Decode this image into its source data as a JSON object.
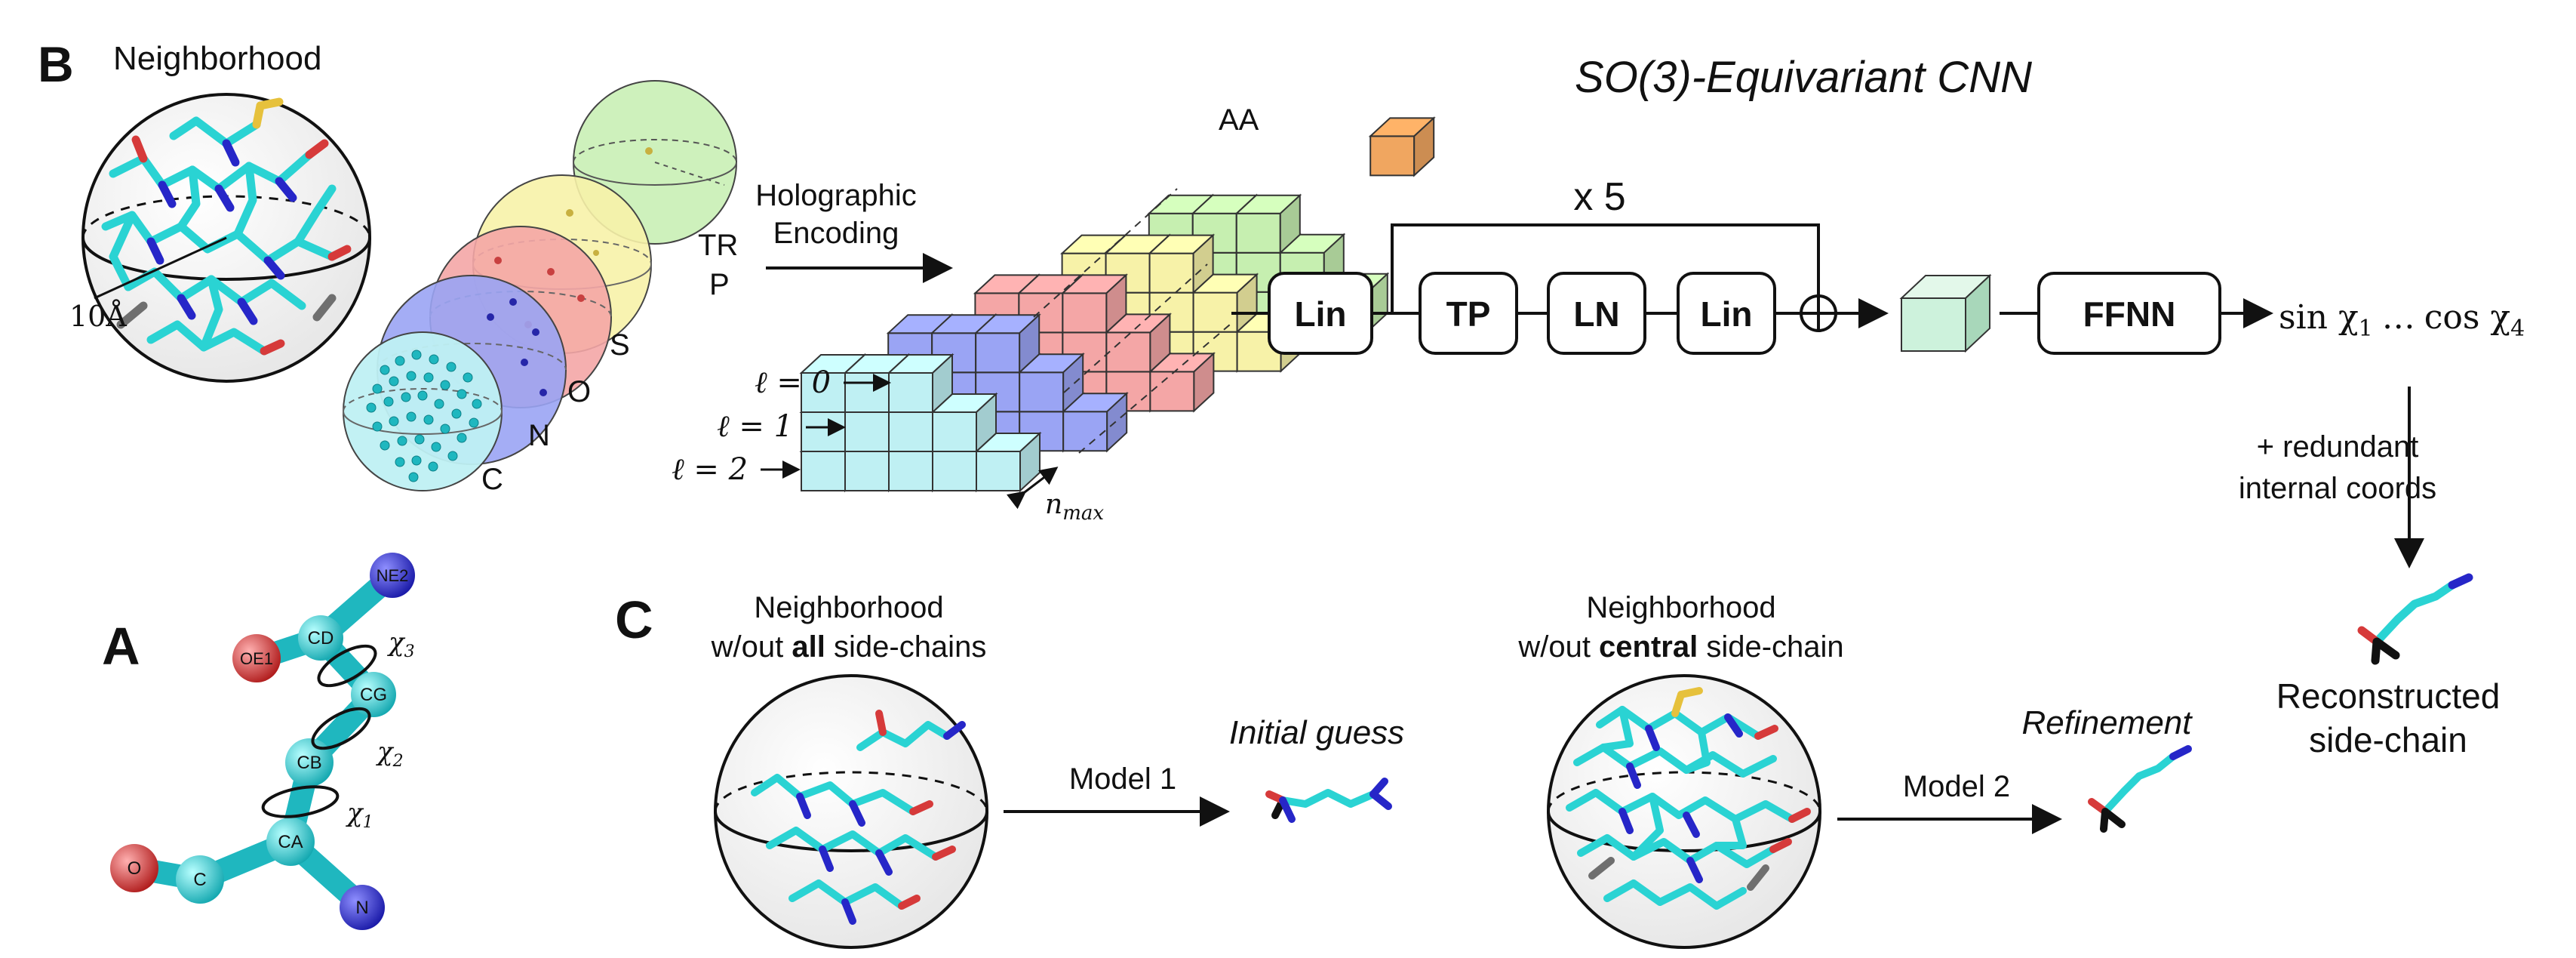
{
  "panels": {
    "a": "A",
    "b": "B",
    "c": "C"
  },
  "panel_b": {
    "neighborhood_label": "Neighborhood",
    "radius_label": "10Å",
    "channels": [
      "C",
      "N",
      "O",
      "S",
      "P",
      "TR"
    ],
    "encoding_label_line1": "Holographic",
    "encoding_label_line2": "Encoding",
    "aa_label": "AA",
    "l_labels": [
      "ℓ = 0",
      "ℓ = 1",
      "ℓ = 2"
    ],
    "nmax_label": "n",
    "nmax_sub": "max",
    "network_title": "SO(3)-Equivariant CNN",
    "repeat_label": "x 5",
    "blocks": [
      "Lin",
      "TP",
      "LN",
      "Lin"
    ],
    "ffnn_label": "FFNN",
    "output_sin": "sin χ",
    "output_sin_sub": "1",
    "output_ellipsis": "…",
    "output_cos": "cos χ",
    "output_cos_sub": "4",
    "redundant_line1": "+  redundant",
    "redundant_line2": "internal coords",
    "reconstructed_line1": "Reconstructed",
    "reconstructed_line2": "side-chain"
  },
  "panel_a": {
    "atoms": [
      "NE2",
      "CD",
      "OE1",
      "CG",
      "CB",
      "CA",
      "C",
      "O",
      "N"
    ],
    "chi_labels": [
      "χ",
      "χ",
      "χ"
    ],
    "chi_subs": [
      "3",
      "2",
      "1"
    ]
  },
  "panel_c": {
    "left_title_line1": "Neighborhood",
    "left_title_line2_pre": "w/out ",
    "left_title_line2_bold": "all",
    "left_title_line2_post": " side-chains",
    "model1_label": "Model 1",
    "initial_guess": "Initial guess",
    "right_title_line1": "Neighborhood",
    "right_title_line2_pre": "w/out ",
    "right_title_line2_bold": "central",
    "right_title_line2_post": " side-chain",
    "model2_label": "Model 2",
    "refinement": "Refinement"
  },
  "colors": {
    "carbon": "#2ad3d3",
    "nitrogen": "#2626c8",
    "oxygen": "#d63a3a",
    "sulfur": "#e6c13c",
    "channel_c": "#bff0f3",
    "channel_n": "#9aa4f4",
    "channel_o": "#f4a6a6",
    "channel_s": "#f7f2a8",
    "channel_p": "#c6efb0",
    "aa_block": "#f0a660"
  }
}
